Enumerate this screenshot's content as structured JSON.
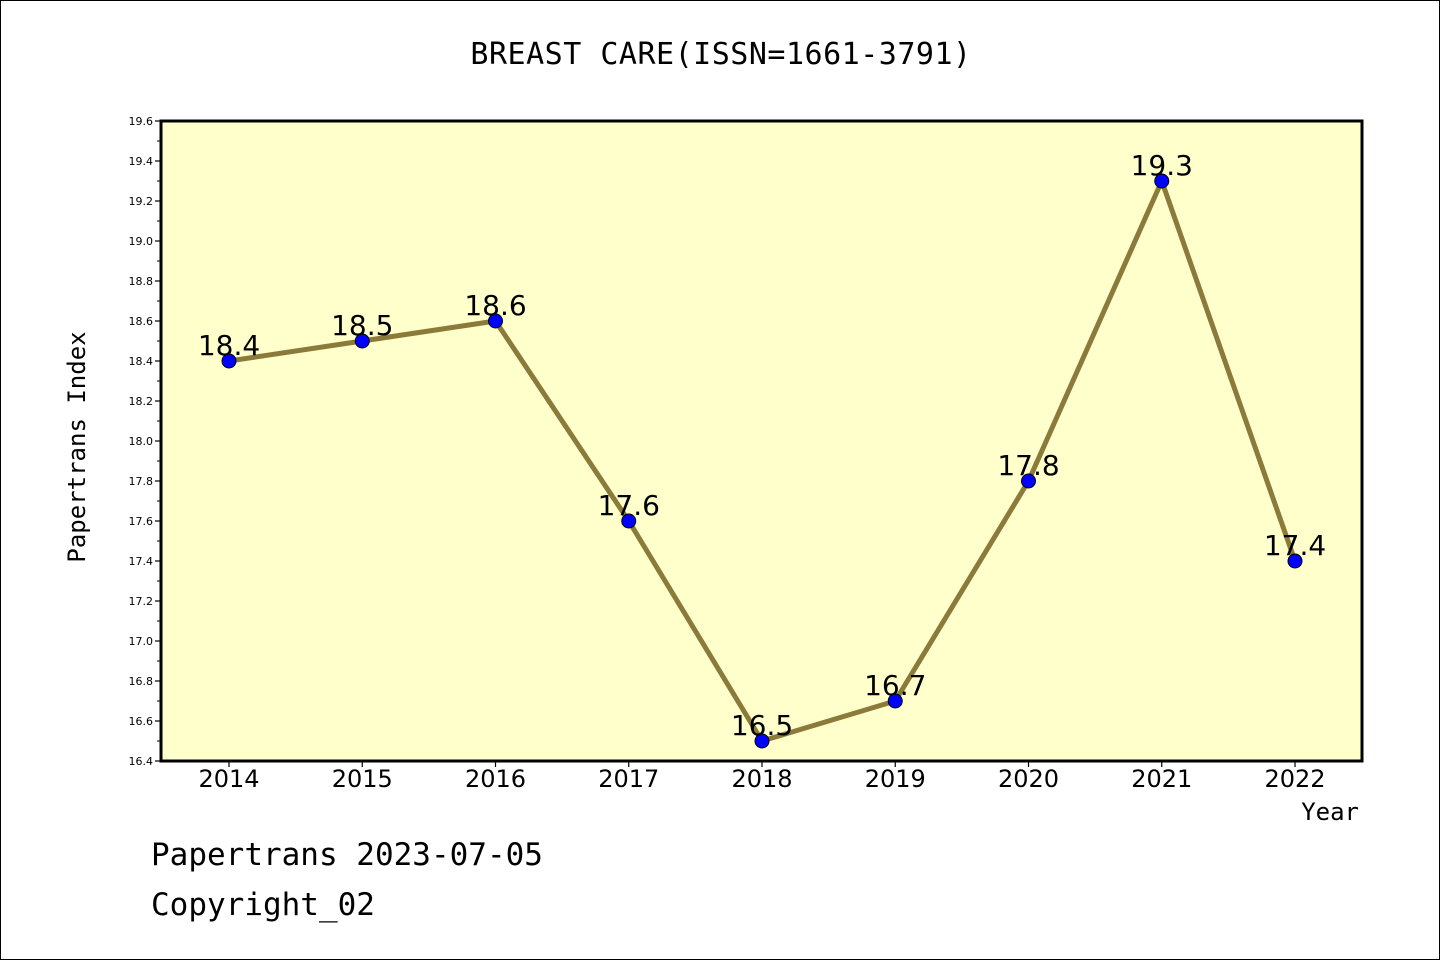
{
  "chart_data": {
    "type": "line",
    "title": "BREAST CARE(ISSN=1661-3791)",
    "xlabel": "Year",
    "ylabel": "Papertrans Index",
    "categories": [
      "2014",
      "2015",
      "2016",
      "2017",
      "2018",
      "2019",
      "2020",
      "2021",
      "2022"
    ],
    "series": [
      {
        "values": [
          18.4,
          18.5,
          18.6,
          17.6,
          16.5,
          16.7,
          17.8,
          19.3,
          17.4
        ],
        "data_labels": [
          "18.4",
          "18.5",
          "18.6",
          "17.6",
          "16.5",
          "16.7",
          "17.8",
          "19.3",
          "17.4"
        ]
      }
    ],
    "ylim": [
      16.4,
      19.6
    ],
    "y_ticks": [
      "16.4",
      "16.6",
      "16.8",
      "17.0",
      "17.2",
      "17.4",
      "17.6",
      "17.8",
      "18.0",
      "18.2",
      "18.4",
      "18.6",
      "18.8",
      "19.0",
      "19.2",
      "19.4",
      "19.6"
    ],
    "grid": false,
    "legend": "none",
    "colors": {
      "plot_background": "#ffffcc",
      "line": "#8b7a3a",
      "marker": "#0000ff"
    }
  },
  "footer": {
    "line1": "Papertrans 2023-07-05",
    "line2": "Copyright_02"
  }
}
